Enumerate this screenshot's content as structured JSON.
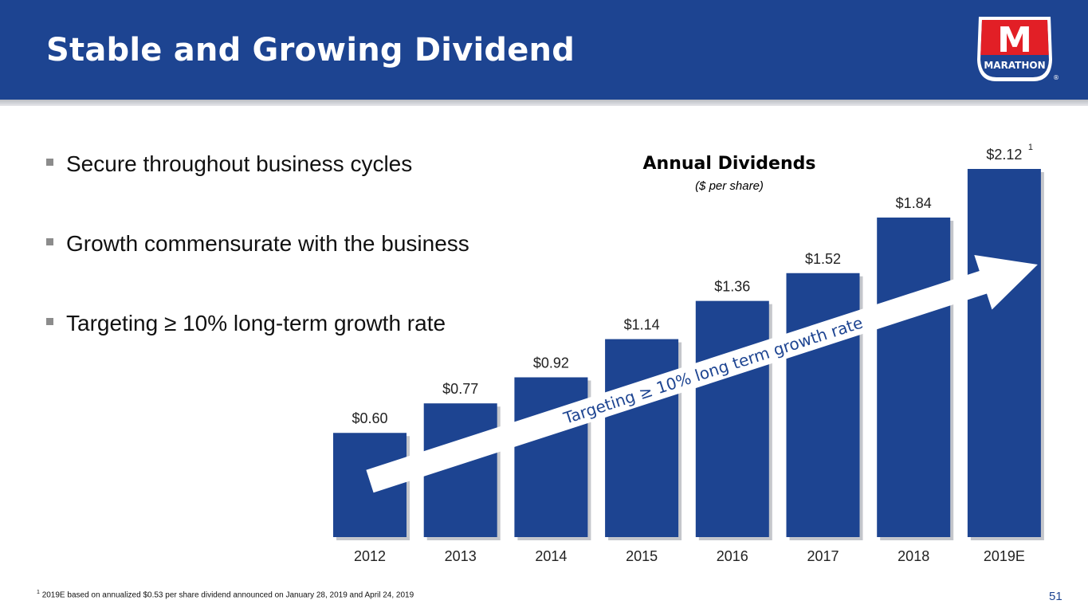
{
  "slide": {
    "title": "Stable and Growing Dividend",
    "page_number": "51",
    "footnote_marker": "1",
    "footnote": "2019E based on annualized $0.53 per share dividend announced on January 28, 2019 and April 24, 2019"
  },
  "logo": {
    "text": "MARATHON",
    "letter": "M",
    "registered": "®"
  },
  "bullets": [
    "Secure throughout business cycles",
    "Growth commensurate with the business",
    "Targeting ≥ 10% long-term growth rate"
  ],
  "colors": {
    "brand_blue": "#1d4491",
    "bar_fill": "#1d4491",
    "arrow_fill": "#ffffff",
    "logo_red": "#e21f26"
  },
  "chart_data": {
    "type": "bar",
    "title": "Annual Dividends",
    "subtitle": "($ per share)",
    "categories": [
      "2012",
      "2013",
      "2014",
      "2015",
      "2016",
      "2017",
      "2018",
      "2019E"
    ],
    "values": [
      0.6,
      0.77,
      0.92,
      1.14,
      1.36,
      1.52,
      1.84,
      2.12
    ],
    "value_labels": [
      "$0.60",
      "$0.77",
      "$0.92",
      "$1.14",
      "$1.36",
      "$1.52",
      "$1.84",
      "$2.12"
    ],
    "value_label_superscript": {
      "index": 7,
      "text": "1"
    },
    "annotation": "Targeting ≥ 10% long term growth rate",
    "ylim": [
      0,
      2.12
    ],
    "xlabel": "",
    "ylabel": "",
    "grid": false
  }
}
